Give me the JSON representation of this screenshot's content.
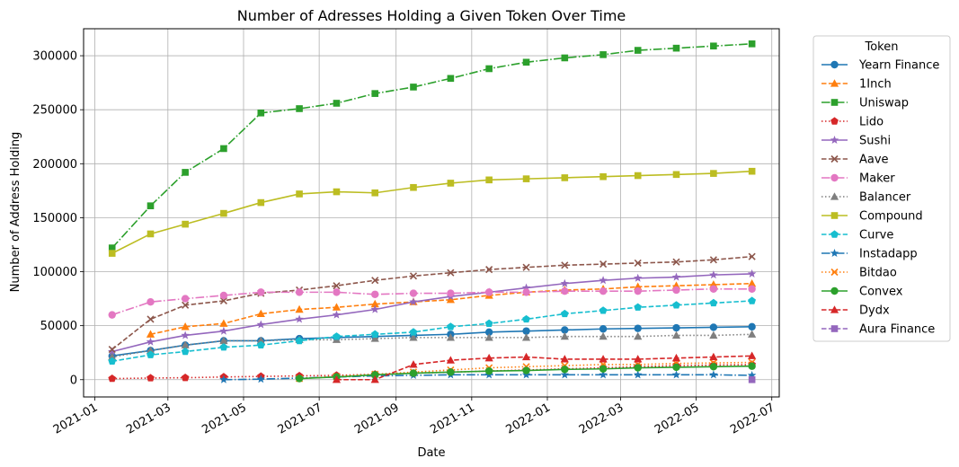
{
  "chart_data": {
    "type": "line",
    "title": "Number of Adresses Holding a Given Token Over Time",
    "xlabel": "Date",
    "ylabel": "Number of Address Holding",
    "x": [
      "2021-01-15",
      "2021-02-15",
      "2021-03-15",
      "2021-04-15",
      "2021-05-15",
      "2021-06-15",
      "2021-07-15",
      "2021-08-15",
      "2021-09-15",
      "2021-10-15",
      "2021-11-15",
      "2021-12-15",
      "2022-01-15",
      "2022-02-15",
      "2022-03-15",
      "2022-04-15",
      "2022-05-15",
      "2022-06-15"
    ],
    "xlim": [
      "2020-12-23",
      "2022-07-07"
    ],
    "ylim": [
      -16000,
      325000
    ],
    "x_ticks": [
      {
        "date": "2021-01-01",
        "label": "2021-01"
      },
      {
        "date": "2021-03-01",
        "label": "2021-03"
      },
      {
        "date": "2021-05-01",
        "label": "2021-05"
      },
      {
        "date": "2021-07-01",
        "label": "2021-07"
      },
      {
        "date": "2021-09-01",
        "label": "2021-09"
      },
      {
        "date": "2021-11-01",
        "label": "2021-11"
      },
      {
        "date": "2022-01-01",
        "label": "2022-01"
      },
      {
        "date": "2022-03-01",
        "label": "2022-03"
      },
      {
        "date": "2022-05-01",
        "label": "2022-05"
      },
      {
        "date": "2022-07-01",
        "label": "2022-07"
      }
    ],
    "y_ticks": [
      0,
      50000,
      100000,
      150000,
      200000,
      250000,
      300000
    ],
    "grid": true,
    "legend_title": "Token",
    "legend_position": "outside right, top",
    "series": [
      {
        "name": "Yearn Finance",
        "color": "#1f77b4",
        "linestyle": "solid",
        "marker": "circle",
        "values": [
          22000,
          27000,
          32000,
          36000,
          36000,
          38000,
          39000,
          40000,
          41000,
          42000,
          44000,
          45000,
          46000,
          47000,
          47500,
          48000,
          48500,
          49000
        ]
      },
      {
        "name": "1Inch",
        "color": "#ff7f0e",
        "linestyle": "dashed",
        "marker": "triangle-up",
        "values": [
          null,
          42000,
          49000,
          52000,
          61000,
          65000,
          67000,
          70000,
          72000,
          74000,
          78000,
          81000,
          83000,
          84000,
          86000,
          87000,
          88000,
          89000
        ]
      },
      {
        "name": "Uniswap",
        "color": "#2ca02c",
        "linestyle": "dashdot",
        "marker": "square",
        "values": [
          122000,
          161000,
          192000,
          214000,
          247000,
          251000,
          256000,
          265000,
          271000,
          279000,
          288000,
          294000,
          298000,
          301000,
          305000,
          307000,
          309000,
          311000
        ]
      },
      {
        "name": "Lido",
        "color": "#d62728",
        "linestyle": "dotted",
        "marker": "pentagon",
        "values": [
          1000,
          1500,
          1800,
          2500,
          3000,
          3500,
          4000,
          5000,
          6000,
          7000,
          8000,
          9000,
          10000,
          11000,
          12000,
          13000,
          13500,
          14000
        ]
      },
      {
        "name": "Sushi",
        "color": "#9467bd",
        "linestyle": "solid",
        "marker": "star",
        "values": [
          26000,
          35000,
          41000,
          45000,
          51000,
          56000,
          60000,
          65000,
          72000,
          77000,
          81000,
          85000,
          89000,
          92000,
          94000,
          95000,
          97000,
          98000
        ]
      },
      {
        "name": "Aave",
        "color": "#8c564b",
        "linestyle": "dashed",
        "marker": "x",
        "values": [
          28000,
          56000,
          69000,
          73000,
          80000,
          83000,
          87000,
          92000,
          96000,
          99000,
          102000,
          104000,
          106000,
          107000,
          108000,
          109000,
          111000,
          114000
        ]
      },
      {
        "name": "Maker",
        "color": "#e377c2",
        "linestyle": "dashdot",
        "marker": "circle",
        "values": [
          60000,
          72000,
          75000,
          78000,
          81000,
          81000,
          81000,
          79000,
          80000,
          80000,
          81000,
          81000,
          82000,
          82000,
          82000,
          83000,
          84000,
          84000
        ]
      },
      {
        "name": "Balancer",
        "color": "#7f7f7f",
        "linestyle": "dotted",
        "marker": "triangle-up",
        "values": [
          21000,
          27000,
          32000,
          36000,
          36000,
          37000,
          37000,
          38000,
          39000,
          39000,
          39000,
          39000,
          40000,
          40000,
          40000,
          41000,
          41000,
          42000
        ]
      },
      {
        "name": "Compound",
        "color": "#bcbd22",
        "linestyle": "solid",
        "marker": "square",
        "values": [
          117000,
          135000,
          144000,
          154000,
          164000,
          172000,
          174000,
          173000,
          178000,
          182000,
          185000,
          186000,
          187000,
          188000,
          189000,
          190000,
          191000,
          193000
        ]
      },
      {
        "name": "Curve",
        "color": "#17becf",
        "linestyle": "dashed",
        "marker": "pentagon",
        "values": [
          17000,
          23000,
          26000,
          30000,
          32000,
          36000,
          40000,
          42000,
          44000,
          49000,
          52000,
          56000,
          61000,
          64000,
          67000,
          69000,
          71000,
          73000
        ]
      },
      {
        "name": "Instadapp",
        "color": "#1f77b4",
        "linestyle": "dashdot",
        "marker": "star",
        "values": [
          null,
          null,
          null,
          0,
          500,
          1500,
          2500,
          3500,
          4000,
          4500,
          4500,
          4500,
          4500,
          4500,
          4500,
          4500,
          4500,
          4000
        ]
      },
      {
        "name": "Bitdao",
        "color": "#ff7f0e",
        "linestyle": "dotted",
        "marker": "x",
        "values": [
          null,
          null,
          null,
          null,
          null,
          1000,
          3000,
          5000,
          7000,
          9000,
          11000,
          12000,
          13000,
          14000,
          14000,
          15000,
          15500,
          16000
        ]
      },
      {
        "name": "Convex",
        "color": "#2ca02c",
        "linestyle": "solid",
        "marker": "circle",
        "values": [
          null,
          null,
          null,
          null,
          null,
          1000,
          2500,
          4500,
          6000,
          7000,
          8000,
          8500,
          9500,
          10000,
          11000,
          11500,
          12000,
          12500
        ]
      },
      {
        "name": "Dydx",
        "color": "#d62728",
        "linestyle": "dashed",
        "marker": "triangle-up",
        "values": [
          null,
          null,
          null,
          null,
          null,
          null,
          0,
          0,
          14000,
          18000,
          20000,
          21000,
          19000,
          19000,
          19000,
          20000,
          21000,
          22000
        ]
      },
      {
        "name": "Aura Finance",
        "color": "#9467bd",
        "linestyle": "dashed",
        "marker": "square",
        "values": [
          null,
          null,
          null,
          null,
          null,
          null,
          null,
          null,
          null,
          null,
          null,
          null,
          null,
          null,
          null,
          null,
          null,
          0
        ]
      }
    ]
  }
}
